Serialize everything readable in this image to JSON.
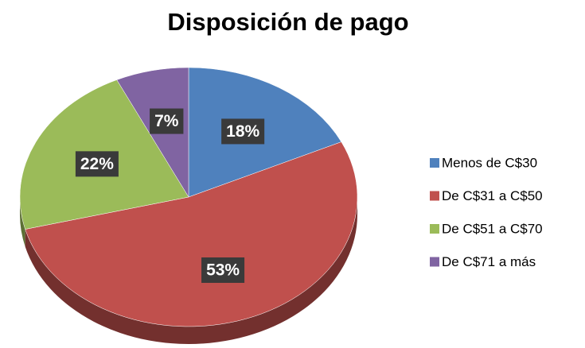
{
  "chart_data": {
    "type": "pie",
    "title": "Disposición de pago",
    "categories": [
      "Menos de C$30",
      "De C$31 a C$50",
      "De C$51 a C$70",
      "De C$71 a más"
    ],
    "values": [
      18,
      53,
      22,
      7
    ],
    "value_labels": [
      "18%",
      "53%",
      "22%",
      "7%"
    ],
    "colors": [
      "#4f81bd",
      "#c0504d",
      "#9bbb59",
      "#8064a2"
    ],
    "legend": "right"
  }
}
